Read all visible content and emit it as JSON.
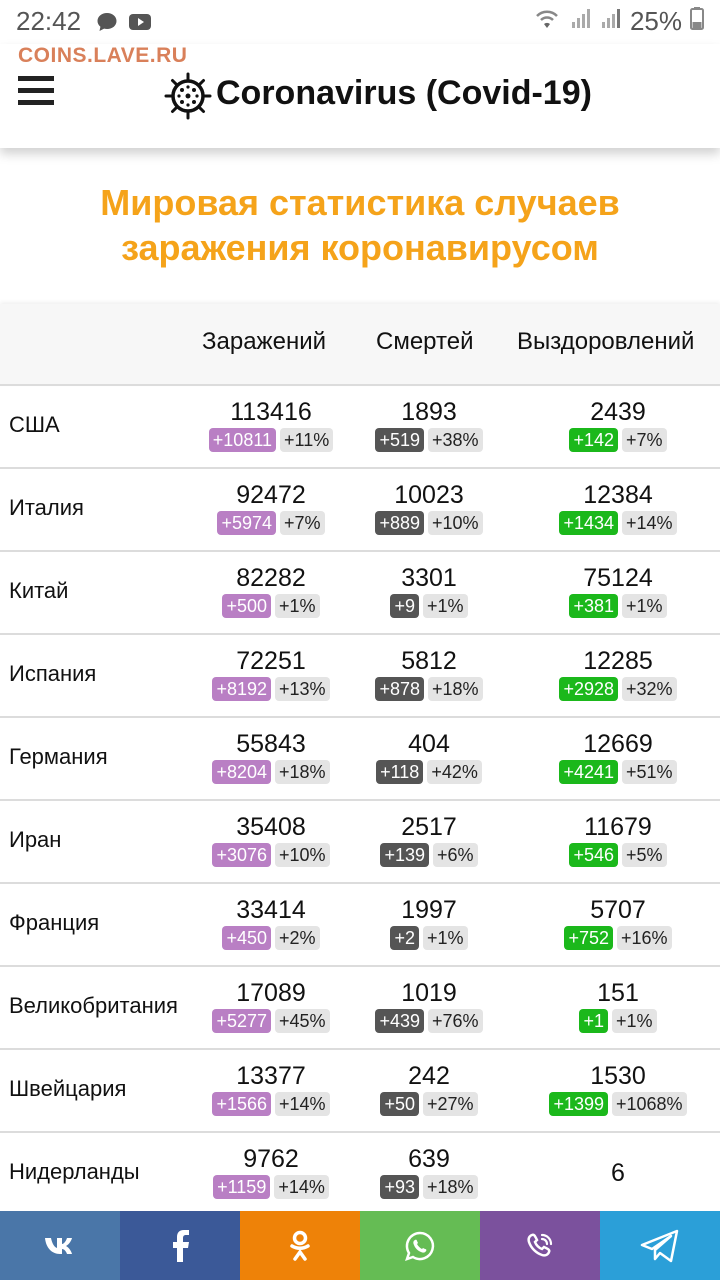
{
  "status_bar": {
    "time": "22:42",
    "battery": "25%"
  },
  "watermark": "COINS.LAVE.RU",
  "header": {
    "title": "Coronavirus (Covid-19)"
  },
  "headline": {
    "line1": "Мировая статистика случаев",
    "line2": "заражения коронавирусом"
  },
  "table": {
    "headers": [
      "Заражений",
      "Смертей",
      "Выздоровлений"
    ],
    "rows": [
      {
        "country": "США",
        "infected": "113416",
        "infected_delta": "+10811",
        "infected_pct": "+11%",
        "deaths": "1893",
        "deaths_delta": "+519",
        "deaths_pct": "+38%",
        "recovered": "2439",
        "recovered_delta": "+142",
        "recovered_pct": "+7%"
      },
      {
        "country": "Италия",
        "infected": "92472",
        "infected_delta": "+5974",
        "infected_pct": "+7%",
        "deaths": "10023",
        "deaths_delta": "+889",
        "deaths_pct": "+10%",
        "recovered": "12384",
        "recovered_delta": "+1434",
        "recovered_pct": "+14%"
      },
      {
        "country": "Китай",
        "infected": "82282",
        "infected_delta": "+500",
        "infected_pct": "+1%",
        "deaths": "3301",
        "deaths_delta": "+9",
        "deaths_pct": "+1%",
        "recovered": "75124",
        "recovered_delta": "+381",
        "recovered_pct": "+1%"
      },
      {
        "country": "Испания",
        "infected": "72251",
        "infected_delta": "+8192",
        "infected_pct": "+13%",
        "deaths": "5812",
        "deaths_delta": "+878",
        "deaths_pct": "+18%",
        "recovered": "12285",
        "recovered_delta": "+2928",
        "recovered_pct": "+32%"
      },
      {
        "country": "Германия",
        "infected": "55843",
        "infected_delta": "+8204",
        "infected_pct": "+18%",
        "deaths": "404",
        "deaths_delta": "+118",
        "deaths_pct": "+42%",
        "recovered": "12669",
        "recovered_delta": "+4241",
        "recovered_pct": "+51%"
      },
      {
        "country": "Иран",
        "infected": "35408",
        "infected_delta": "+3076",
        "infected_pct": "+10%",
        "deaths": "2517",
        "deaths_delta": "+139",
        "deaths_pct": "+6%",
        "recovered": "11679",
        "recovered_delta": "+546",
        "recovered_pct": "+5%"
      },
      {
        "country": "Франция",
        "infected": "33414",
        "infected_delta": "+450",
        "infected_pct": "+2%",
        "deaths": "1997",
        "deaths_delta": "+2",
        "deaths_pct": "+1%",
        "recovered": "5707",
        "recovered_delta": "+752",
        "recovered_pct": "+16%"
      },
      {
        "country": "Великобритания",
        "infected": "17089",
        "infected_delta": "+5277",
        "infected_pct": "+45%",
        "deaths": "1019",
        "deaths_delta": "+439",
        "deaths_pct": "+76%",
        "recovered": "151",
        "recovered_delta": "+1",
        "recovered_pct": "+1%"
      },
      {
        "country": "Швейцария",
        "infected": "13377",
        "infected_delta": "+1566",
        "infected_pct": "+14%",
        "deaths": "242",
        "deaths_delta": "+50",
        "deaths_pct": "+27%",
        "recovered": "1530",
        "recovered_delta": "+1399",
        "recovered_pct": "+1068%"
      },
      {
        "country": "Нидерланды",
        "infected": "9762",
        "infected_delta": "+1159",
        "infected_pct": "+14%",
        "deaths": "639",
        "deaths_delta": "+93",
        "deaths_pct": "+18%",
        "recovered": "6",
        "recovered_delta": "",
        "recovered_pct": ""
      }
    ]
  },
  "share_bar": [
    {
      "icon": "vk-icon",
      "color": "#4a76a8"
    },
    {
      "icon": "facebook-icon",
      "color": "#3b5998"
    },
    {
      "icon": "odnoklassniki-icon",
      "color": "#ee8208"
    },
    {
      "icon": "whatsapp-icon",
      "color": "#65bc54"
    },
    {
      "icon": "viber-icon",
      "color": "#7b519d"
    },
    {
      "icon": "telegram-icon",
      "color": "#2b9fd8"
    }
  ],
  "colors": {
    "headline": "#f5a31a",
    "infected_badge": "#b97fc4",
    "deaths_badge": "#555555",
    "recovered_badge": "#1bb81b"
  }
}
